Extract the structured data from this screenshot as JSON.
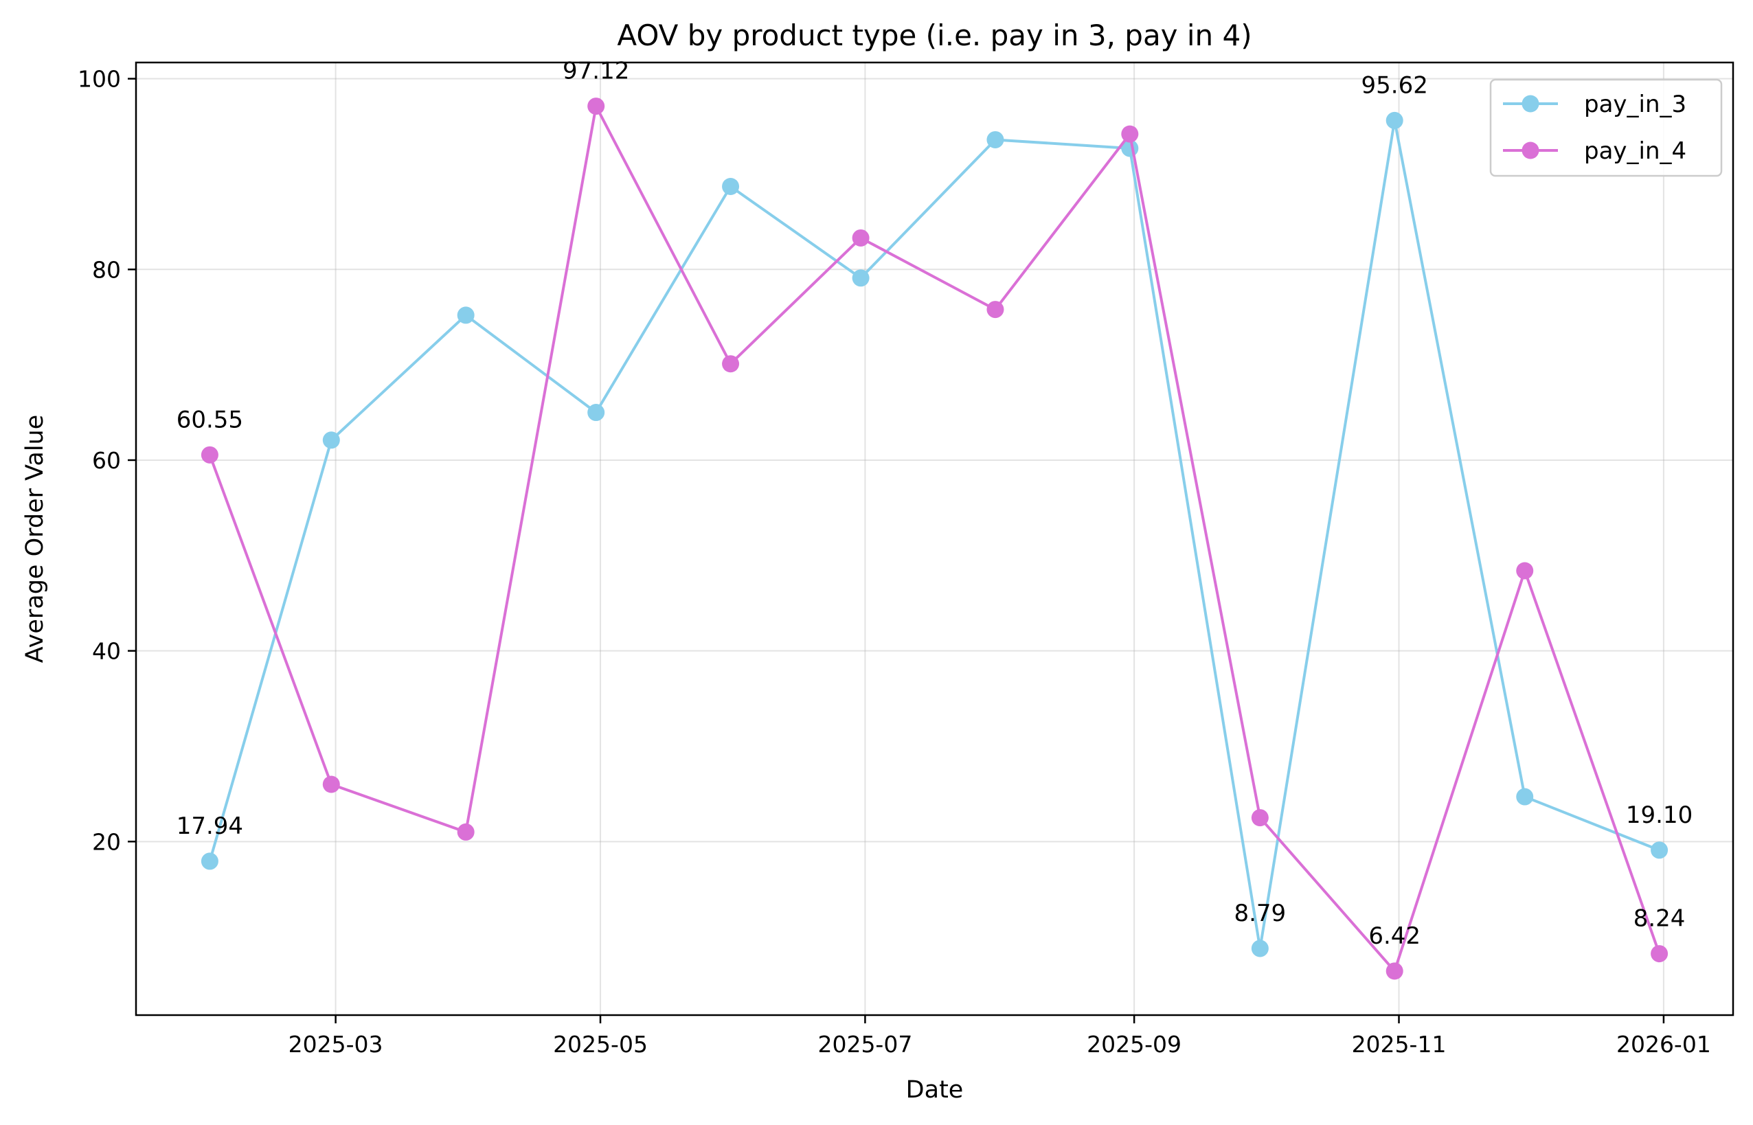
{
  "chart_data": {
    "type": "line",
    "title": "AOV by product type (i.e. pay in 3, pay in 4)",
    "xlabel": "Date",
    "ylabel": "Average Order Value",
    "x": [
      "2025-01-31",
      "2025-02-28",
      "2025-03-31",
      "2025-04-30",
      "2025-05-31",
      "2025-06-30",
      "2025-07-31",
      "2025-08-31",
      "2025-09-30",
      "2025-10-31",
      "2025-11-30",
      "2025-12-31"
    ],
    "xlim": [
      "2025-01-14",
      "2026-01-17"
    ],
    "ylim": [
      1.8,
      101.7
    ],
    "xticks": [
      "2025-03",
      "2025-05",
      "2025-07",
      "2025-09",
      "2025-11",
      "2026-01"
    ],
    "yticks": [
      20,
      40,
      60,
      80,
      100
    ],
    "grid": true,
    "legend": "top-right",
    "series": [
      {
        "name": "pay_in_3",
        "color": "#87CEEB",
        "values": [
          17.94,
          62.1,
          75.2,
          65.0,
          88.7,
          79.1,
          93.6,
          92.7,
          8.79,
          95.62,
          24.7,
          19.1
        ],
        "labels": [
          {
            "index": 0,
            "text": "17.94"
          },
          {
            "index": 8,
            "text": "8.79"
          },
          {
            "index": 9,
            "text": "95.62"
          },
          {
            "index": 11,
            "text": "19.10"
          }
        ]
      },
      {
        "name": "pay_in_4",
        "color": "#DA70D6",
        "values": [
          60.55,
          26.0,
          21.0,
          97.12,
          70.1,
          83.3,
          75.8,
          94.2,
          22.5,
          6.42,
          48.4,
          8.24
        ],
        "labels": [
          {
            "index": 0,
            "text": "60.55"
          },
          {
            "index": 3,
            "text": "97.12"
          },
          {
            "index": 9,
            "text": "6.42"
          },
          {
            "index": 11,
            "text": "8.24"
          }
        ]
      }
    ]
  }
}
